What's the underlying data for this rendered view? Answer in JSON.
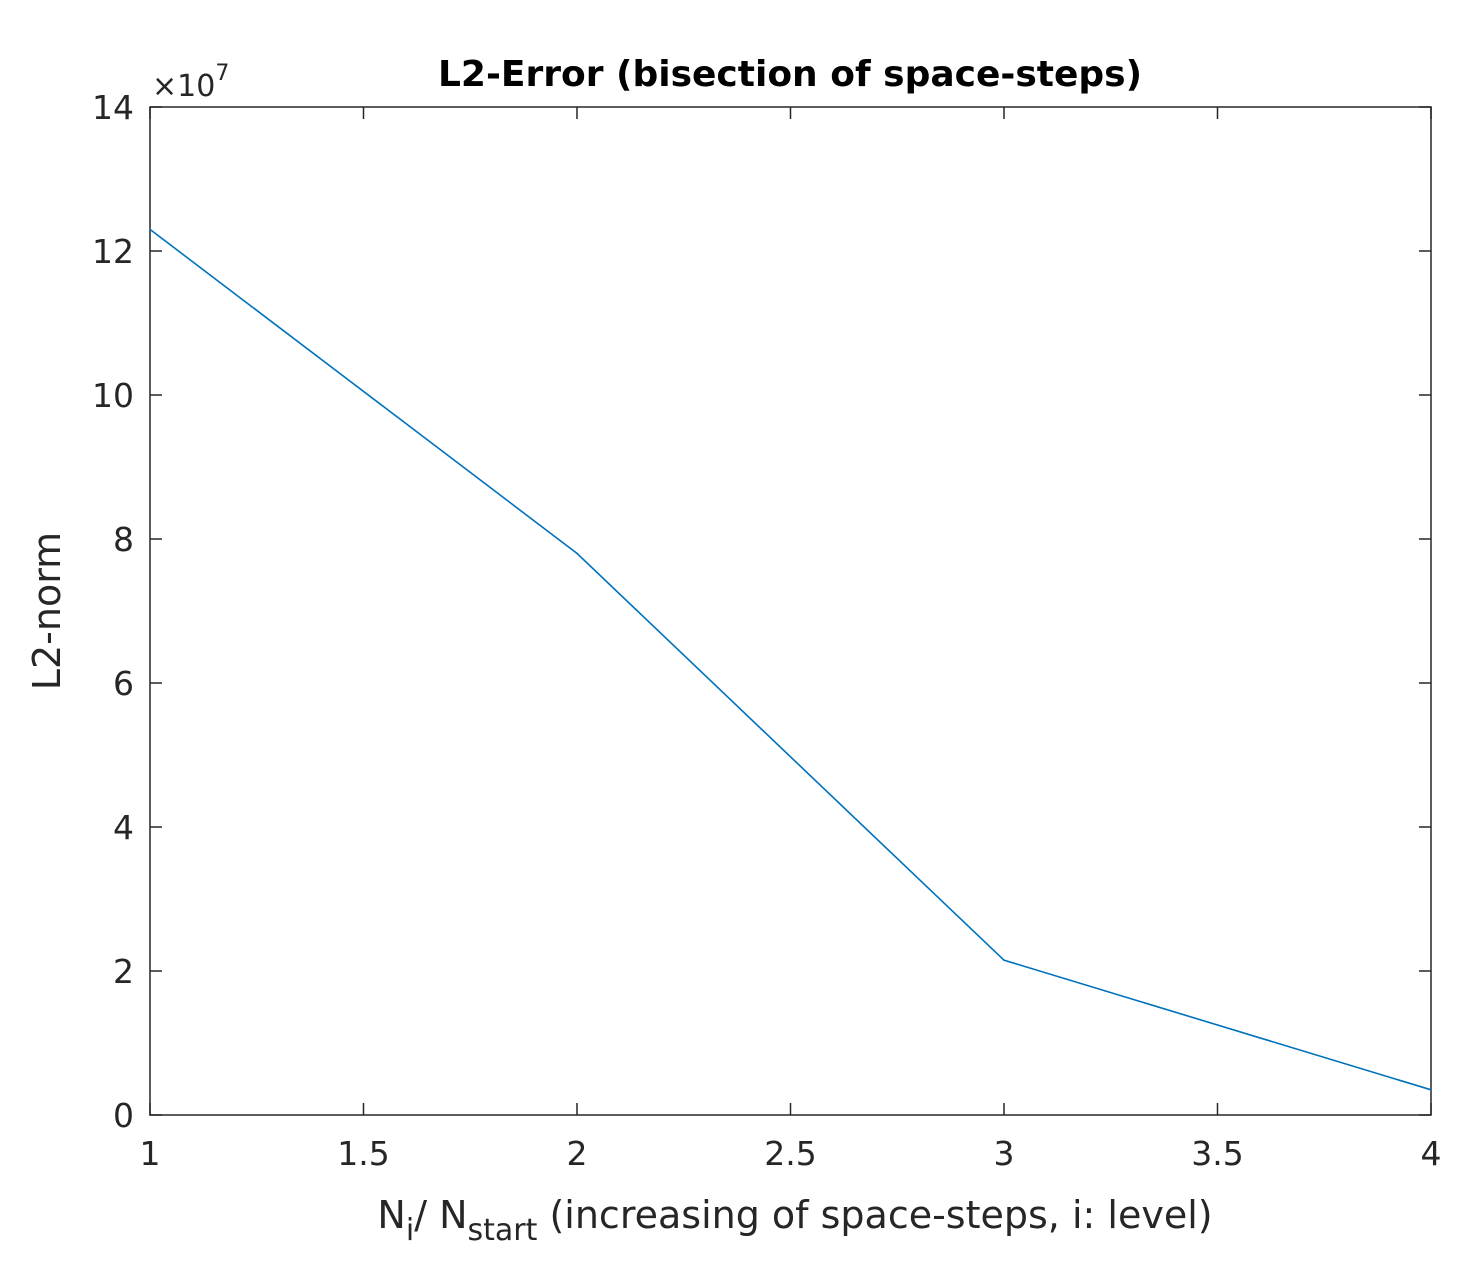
{
  "chart_data": {
    "type": "line",
    "title": "L2-Error (bisection of space-steps)",
    "xlabel": {
      "main1": "N",
      "sub1": "i",
      "main2": "/ N",
      "sub2": "start",
      "rest": " (increasing of space-steps, i: level)"
    },
    "ylabel": "L2-norm",
    "y_multiplier": {
      "prefix": "×10",
      "exponent": "7"
    },
    "xlim": [
      1,
      4
    ],
    "ylim": [
      0,
      14
    ],
    "xticks": [
      "1",
      "1.5",
      "2",
      "2.5",
      "3",
      "3.5",
      "4"
    ],
    "yticks": [
      "0",
      "2",
      "4",
      "6",
      "8",
      "10",
      "12",
      "14"
    ],
    "grid": false,
    "series": [
      {
        "color": "#0072bd",
        "x": [
          1,
          2,
          3,
          4
        ],
        "y": [
          12.3,
          7.8,
          2.15,
          0.35
        ]
      }
    ]
  }
}
